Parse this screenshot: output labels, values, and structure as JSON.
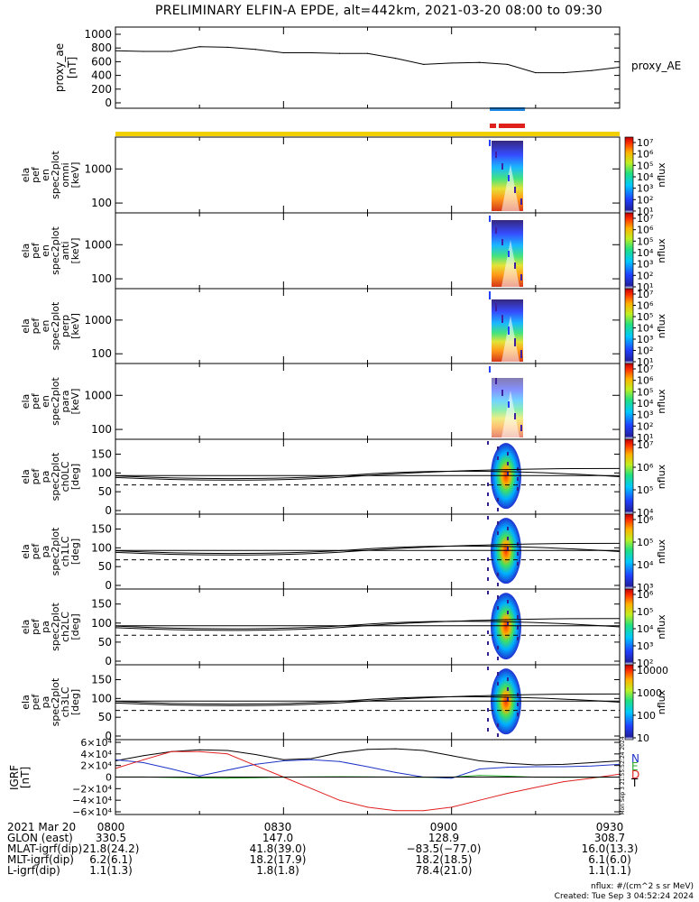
{
  "title": "PRELIMINARY ELFIN-A EPDE, alt=442km, 2021-03-20 08:00 to 09:30",
  "colors": {
    "ae_line": "#000000",
    "bar_blue": "#1e88e5",
    "bar_red": "#e0201b",
    "bar_yellow": "#f2d000",
    "grf_n": "#1f33c8",
    "grf_e": "#28a828",
    "grf_d": "#e02020",
    "grf_t": "#000000"
  },
  "panels": {
    "ae": {
      "ylabel": [
        "proxy_ae",
        "[nT]"
      ],
      "series_label": "proxy_AE",
      "ticks": [
        "1000",
        "800",
        "600",
        "400",
        "200",
        "0"
      ]
    },
    "spec": [
      {
        "id": "omni",
        "ylabel": [
          "ela",
          "pef",
          "en",
          "spec2plot",
          "omni",
          "[keV]"
        ]
      },
      {
        "id": "anti",
        "ylabel": [
          "ela",
          "pef",
          "en",
          "spec2plot",
          "anti",
          "[keV]"
        ]
      },
      {
        "id": "perp",
        "ylabel": [
          "ela",
          "pef",
          "en",
          "spec2plot",
          "perp",
          "[keV]"
        ]
      },
      {
        "id": "para",
        "ylabel": [
          "ela",
          "pef",
          "en",
          "spec2plot",
          "para",
          "[keV]"
        ]
      }
    ],
    "spec_ticks": [
      "1000",
      "100"
    ],
    "pa": [
      {
        "id": "ch0LC",
        "ylabel": [
          "ela",
          "pef",
          "pa",
          "spec2plot",
          "ch0LC",
          "[deg]"
        ]
      },
      {
        "id": "ch1LC",
        "ylabel": [
          "ela",
          "pef",
          "pa",
          "spec2plot",
          "ch1LC",
          "[deg]"
        ]
      },
      {
        "id": "ch2LC",
        "ylabel": [
          "ela",
          "pef",
          "pa",
          "spec2plot",
          "ch2LC",
          "[deg]"
        ]
      },
      {
        "id": "ch3LC",
        "ylabel": [
          "ela",
          "pef",
          "pa",
          "spec2plot",
          "ch3LC",
          "[deg]"
        ]
      }
    ],
    "pa_ticks": [
      "150",
      "100",
      "50",
      "0"
    ],
    "grf": {
      "ylabel": [
        "IGRF",
        "[nT]"
      ],
      "ticks": [
        "6×10⁴",
        "4×10⁴",
        "2×10⁴",
        "0",
        "−2×10⁴",
        "−4×10⁴",
        "−6×10⁴"
      ],
      "legend": [
        "N",
        "E",
        "D",
        "T"
      ]
    }
  },
  "colorbars": {
    "unit": "nflux",
    "cb1": [
      "10⁷",
      "10⁶",
      "10⁵",
      "10⁴",
      "10³",
      "10²",
      "10¹"
    ],
    "cb2": [
      "10⁷",
      "10⁶",
      "10⁵",
      "10⁴",
      "10³",
      "10²",
      "10¹"
    ],
    "cb3": [
      "10⁷",
      "10⁶",
      "10⁵",
      "10⁴",
      "10³",
      "10²",
      "10¹"
    ],
    "cb4": [
      "10⁷",
      "10⁶",
      "10⁵",
      "10⁴",
      "10³",
      "10²",
      "10¹"
    ],
    "cb5": [
      "10⁷",
      "10⁶",
      "10⁵",
      "10⁴"
    ],
    "cb6": [
      "10⁶",
      "10⁵",
      "10⁴",
      "10³"
    ],
    "cb7": [
      "10⁶",
      "10⁵",
      "10⁴",
      "10³",
      "10²"
    ],
    "cb8": [
      "10000",
      "1000",
      "100",
      "10"
    ]
  },
  "bottom_table": {
    "rows": [
      {
        "label": "2021 Mar 20",
        "values": [
          "0800",
          "0830",
          "0900",
          "0930"
        ]
      },
      {
        "label": "GLON (east)",
        "values": [
          "330.5",
          "147.0",
          "128.9",
          "308.7"
        ]
      },
      {
        "label": "MLAT-igrf(dip)",
        "values": [
          "21.8(24.2)",
          "41.8(39.0)",
          "−83.5(−77.0)",
          "16.0(13.3)"
        ]
      },
      {
        "label": "MLT-igrf(dip)",
        "values": [
          "6.2(6.1)",
          "18.2(17.9)",
          "18.2(18.5)",
          "6.1(6.0)"
        ]
      },
      {
        "label": "L-igrf(dip)",
        "values": [
          "1.1(1.3)",
          "1.8(1.8)",
          "78.4(21.0)",
          "1.1(1.1)"
        ]
      }
    ]
  },
  "footer": {
    "units": "nflux: #/(cm^2 s sr MeV)",
    "created": "Created: Tue Sep  3 04:52:24 2024",
    "sidestamp": "Mon Sep  3 21:55:52:24 2024"
  },
  "chart_data": [
    {
      "type": "line",
      "title": "proxy_ae",
      "series": [
        {
          "name": "proxy_AE",
          "x": [
            "08:00",
            "08:05",
            "08:10",
            "08:15",
            "08:20",
            "08:25",
            "08:30",
            "08:35",
            "08:40",
            "08:45",
            "08:50",
            "08:55",
            "09:00",
            "09:05",
            "09:10",
            "09:15",
            "09:20",
            "09:25",
            "09:30"
          ],
          "values": [
            760,
            750,
            750,
            820,
            810,
            780,
            730,
            730,
            720,
            720,
            650,
            560,
            580,
            590,
            560,
            440,
            440,
            470,
            520
          ]
        }
      ],
      "ylabel": "proxy_ae [nT]",
      "ylim": [
        0,
        1000
      ]
    },
    {
      "type": "line",
      "title": "IGRF",
      "x": [
        "08:00",
        "08:05",
        "08:10",
        "08:15",
        "08:20",
        "08:25",
        "08:30",
        "08:35",
        "08:40",
        "08:45",
        "08:50",
        "08:55",
        "09:00",
        "09:05",
        "09:10",
        "09:15",
        "09:20",
        "09:25",
        "09:30"
      ],
      "series": [
        {
          "name": "T",
          "values": [
            28000,
            37000,
            44000,
            47000,
            46000,
            39000,
            30000,
            32000,
            42000,
            48000,
            49000,
            46000,
            37000,
            28000,
            24000,
            21000,
            22000,
            25000,
            28000
          ]
        },
        {
          "name": "N",
          "values": [
            30000,
            25000,
            14000,
            2000,
            12000,
            22000,
            28000,
            30000,
            27000,
            18000,
            8000,
            0,
            -2000,
            14000,
            17000,
            18000,
            18000,
            19000,
            22000
          ]
        },
        {
          "name": "D",
          "values": [
            15000,
            30000,
            44000,
            44000,
            40000,
            20000,
            0,
            -20000,
            -40000,
            -52000,
            -58000,
            -58000,
            -52000,
            -40000,
            -28000,
            -18000,
            -8000,
            -2000,
            5000
          ]
        },
        {
          "name": "E",
          "values": [
            200,
            200,
            -800,
            -1500,
            -1800,
            -1200,
            -200,
            300,
            600,
            400,
            0,
            -300,
            -100,
            3000,
            1500,
            -200,
            -500,
            -400,
            0
          ]
        }
      ],
      "ylim": [
        -60000,
        60000
      ]
    }
  ]
}
